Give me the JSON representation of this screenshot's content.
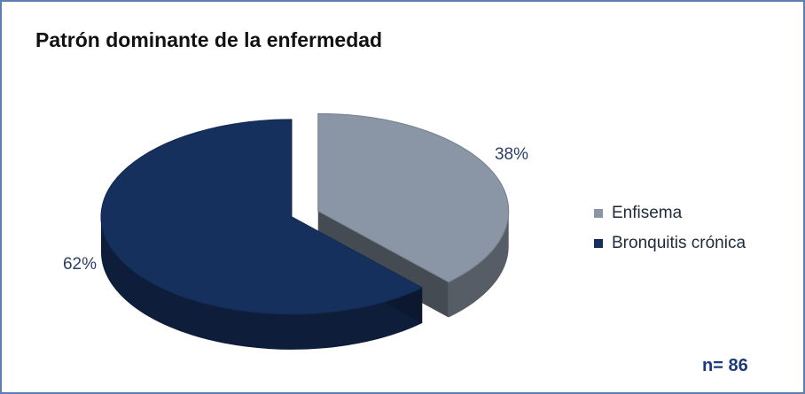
{
  "chart_data": {
    "type": "pie",
    "title": "Patrón dominante de la enfermedad",
    "categories": [
      "Enfisema",
      "Bronquitis crónica"
    ],
    "values": [
      38,
      62
    ],
    "labels": [
      "38%",
      "62%"
    ],
    "colors": [
      "#8a96a6",
      "#16305e"
    ],
    "legend_position": "right",
    "annotation": "n= 86"
  }
}
